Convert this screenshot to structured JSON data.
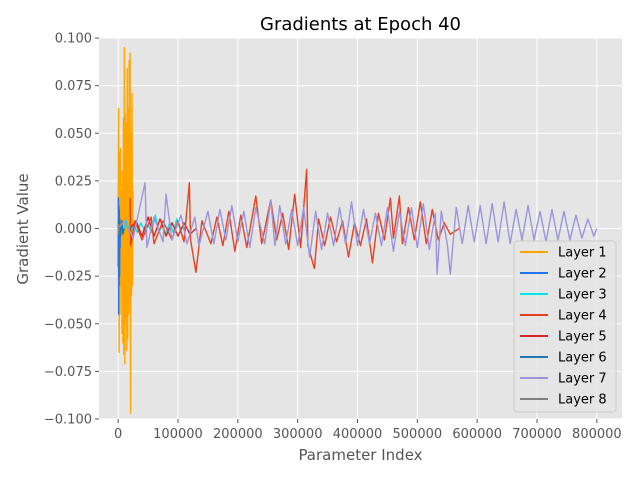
{
  "chart_data": {
    "type": "line",
    "title": "Gradients at Epoch 40",
    "xlabel": "Parameter Index",
    "ylabel": "Gradient Value",
    "xlim": [
      -32000,
      842000
    ],
    "ylim": [
      -0.1,
      0.1
    ],
    "xticks": [
      0,
      100000,
      200000,
      300000,
      400000,
      500000,
      600000,
      700000,
      800000
    ],
    "xtick_labels": [
      "0",
      "100000",
      "200000",
      "300000",
      "400000",
      "500000",
      "600000",
      "700000",
      "800000"
    ],
    "yticks": [
      -0.1,
      -0.075,
      -0.05,
      -0.025,
      0.0,
      0.025,
      0.05,
      0.075,
      0.1
    ],
    "ytick_labels": [
      "−0.100",
      "−0.075",
      "−0.050",
      "−0.025",
      "0.000",
      "0.025",
      "0.050",
      "0.075",
      "0.100"
    ],
    "grid": true,
    "legend_position": "lower-right",
    "series": [
      {
        "name": "Layer 1",
        "color": "#ffa500",
        "x_range": [
          0,
          25000
        ],
        "points": [
          [
            0,
            0.01
          ],
          [
            800,
            0.063
          ],
          [
            1600,
            -0.065
          ],
          [
            2400,
            0.04
          ],
          [
            3200,
            -0.045
          ],
          [
            4000,
            0.042
          ],
          [
            4800,
            -0.03
          ],
          [
            5600,
            0.02
          ],
          [
            6400,
            -0.055
          ],
          [
            7200,
            0.03
          ],
          [
            8000,
            -0.06
          ],
          [
            8800,
            0.058
          ],
          [
            9600,
            -0.066
          ],
          [
            10400,
            0.095
          ],
          [
            11200,
            -0.071
          ],
          [
            12000,
            0.06
          ],
          [
            12800,
            -0.05
          ],
          [
            13600,
            0.055
          ],
          [
            14400,
            -0.064
          ],
          [
            15200,
            0.084
          ],
          [
            16000,
            -0.058
          ],
          [
            16800,
            0.063
          ],
          [
            17600,
            -0.045
          ],
          [
            18400,
            0.088
          ],
          [
            19200,
            -0.04
          ],
          [
            20000,
            0.092
          ],
          [
            20800,
            -0.097
          ],
          [
            21600,
            0.05
          ],
          [
            22400,
            -0.035
          ],
          [
            23200,
            0.071
          ],
          [
            24000,
            -0.03
          ],
          [
            24800,
            0.02
          ]
        ]
      },
      {
        "name": "Layer 2",
        "color": "#1f77f0",
        "x_range": [
          0,
          4000
        ],
        "points": [
          [
            0,
            -0.02
          ],
          [
            400,
            0.016
          ],
          [
            800,
            -0.045
          ],
          [
            1200,
            0.012
          ],
          [
            1600,
            -0.03
          ],
          [
            2000,
            0.01
          ],
          [
            2400,
            -0.025
          ],
          [
            2800,
            0.005
          ],
          [
            3200,
            -0.01
          ],
          [
            3600,
            0.002
          ],
          [
            4000,
            0.0
          ]
        ]
      },
      {
        "name": "Layer 3",
        "color": "#00e5e5",
        "x_range": [
          0,
          110000
        ],
        "points": [
          [
            2000,
            0.003
          ],
          [
            8000,
            -0.002
          ],
          [
            14000,
            0.004
          ],
          [
            20000,
            -0.003
          ],
          [
            26000,
            0.002
          ],
          [
            32000,
            -0.002
          ],
          [
            38000,
            0.003
          ],
          [
            44000,
            -0.001
          ],
          [
            50000,
            0.002
          ],
          [
            56000,
            -0.002
          ],
          [
            62000,
            0.007
          ],
          [
            68000,
            -0.002
          ],
          [
            74000,
            0.002
          ],
          [
            80000,
            -0.003
          ],
          [
            86000,
            0.003
          ],
          [
            92000,
            -0.002
          ],
          [
            98000,
            0.005
          ],
          [
            104000,
            -0.001
          ],
          [
            110000,
            0.001
          ]
        ]
      },
      {
        "name": "Layer 4",
        "color": "#e8401c",
        "x_range": [
          20000,
          570000
        ],
        "points": [
          [
            20000,
            0.016
          ],
          [
            21000,
            -0.009
          ],
          [
            28000,
            0.004
          ],
          [
            40000,
            -0.006
          ],
          [
            55000,
            0.006
          ],
          [
            60000,
            -0.008
          ],
          [
            75000,
            0.004
          ],
          [
            90000,
            -0.006
          ],
          [
            100000,
            0.004
          ],
          [
            110000,
            -0.007
          ],
          [
            119000,
            0.024
          ],
          [
            121000,
            -0.006
          ],
          [
            130000,
            -0.023
          ],
          [
            140000,
            0.004
          ],
          [
            155000,
            -0.008
          ],
          [
            165000,
            0.006
          ],
          [
            175000,
            -0.009
          ],
          [
            185000,
            0.009
          ],
          [
            195000,
            -0.012
          ],
          [
            205000,
            0.007
          ],
          [
            215000,
            -0.01
          ],
          [
            230000,
            0.017
          ],
          [
            240000,
            -0.008
          ],
          [
            255000,
            0.015
          ],
          [
            265000,
            -0.006
          ],
          [
            275000,
            0.008
          ],
          [
            285000,
            -0.011
          ],
          [
            295000,
            0.018
          ],
          [
            305000,
            -0.01
          ],
          [
            315000,
            0.031
          ],
          [
            317000,
            -0.009
          ],
          [
            328000,
            -0.021
          ],
          [
            335000,
            0.005
          ],
          [
            345000,
            -0.009
          ],
          [
            355000,
            0.006
          ],
          [
            365000,
            -0.007
          ],
          [
            375000,
            0.004
          ],
          [
            385000,
            -0.015
          ],
          [
            395000,
            0.003
          ],
          [
            405000,
            -0.009
          ],
          [
            415000,
            0.005
          ],
          [
            425000,
            -0.018
          ],
          [
            435000,
            0.008
          ],
          [
            445000,
            -0.006
          ],
          [
            455000,
            0.016
          ],
          [
            460000,
            -0.005
          ],
          [
            470000,
            0.017
          ],
          [
            475000,
            -0.008
          ],
          [
            485000,
            0.011
          ],
          [
            495000,
            -0.006
          ],
          [
            505000,
            0.014
          ],
          [
            515000,
            -0.008
          ],
          [
            525000,
            0.01
          ],
          [
            535000,
            -0.006
          ],
          [
            545000,
            0.003
          ],
          [
            555000,
            -0.003
          ],
          [
            570000,
            0.0
          ]
        ]
      },
      {
        "name": "Layer 5",
        "color": "#d62728",
        "x_range": [
          20000,
          130000
        ],
        "points": [
          [
            20000,
            0.0
          ],
          [
            30000,
            0.004
          ],
          [
            40000,
            -0.004
          ],
          [
            50000,
            0.006
          ],
          [
            60000,
            -0.004
          ],
          [
            70000,
            0.005
          ],
          [
            80000,
            -0.004
          ],
          [
            90000,
            0.003
          ],
          [
            100000,
            -0.004
          ],
          [
            110000,
            0.003
          ],
          [
            120000,
            -0.003
          ],
          [
            130000,
            0.0
          ]
        ]
      },
      {
        "name": "Layer 6",
        "color": "#1f77b4",
        "x_range": [
          0,
          10000
        ],
        "points": [
          [
            0,
            0.0
          ],
          [
            2000,
            0.005
          ],
          [
            4000,
            -0.004
          ],
          [
            6000,
            0.004
          ],
          [
            8000,
            -0.003
          ],
          [
            10000,
            0.0
          ]
        ]
      },
      {
        "name": "Layer 7",
        "color": "#9c95dc",
        "x_range": [
          0,
          800000
        ],
        "points": [
          [
            0,
            0.0
          ],
          [
            10000,
            0.004
          ],
          [
            25000,
            -0.005
          ],
          [
            45000,
            0.024
          ],
          [
            48000,
            -0.01
          ],
          [
            60000,
            0.006
          ],
          [
            75000,
            -0.007
          ],
          [
            80000,
            0.018
          ],
          [
            90000,
            -0.006
          ],
          [
            105000,
            0.007
          ],
          [
            115000,
            -0.008
          ],
          [
            128000,
            0.006
          ],
          [
            135000,
            -0.009
          ],
          [
            150000,
            0.009
          ],
          [
            160000,
            -0.008
          ],
          [
            170000,
            0.01
          ],
          [
            180000,
            -0.006
          ],
          [
            190000,
            0.012
          ],
          [
            200000,
            -0.007
          ],
          [
            210000,
            0.009
          ],
          [
            220000,
            -0.01
          ],
          [
            230000,
            0.011
          ],
          [
            245000,
            -0.008
          ],
          [
            255000,
            0.015
          ],
          [
            262000,
            -0.009
          ],
          [
            270000,
            0.012
          ],
          [
            280000,
            -0.008
          ],
          [
            290000,
            0.01
          ],
          [
            300000,
            -0.009
          ],
          [
            310000,
            0.011
          ],
          [
            320000,
            -0.015
          ],
          [
            330000,
            0.009
          ],
          [
            340000,
            -0.011
          ],
          [
            350000,
            0.008
          ],
          [
            360000,
            -0.009
          ],
          [
            370000,
            0.011
          ],
          [
            380000,
            -0.008
          ],
          [
            390000,
            0.014
          ],
          [
            400000,
            -0.009
          ],
          [
            410000,
            0.01
          ],
          [
            420000,
            -0.008
          ],
          [
            430000,
            0.008
          ],
          [
            440000,
            -0.009
          ],
          [
            450000,
            0.011
          ],
          [
            460000,
            -0.012
          ],
          [
            470000,
            0.009
          ],
          [
            480000,
            -0.009
          ],
          [
            490000,
            0.011
          ],
          [
            500000,
            -0.01
          ],
          [
            510000,
            0.013
          ],
          [
            520000,
            -0.011
          ],
          [
            530000,
            0.008
          ],
          [
            533000,
            -0.024
          ],
          [
            540000,
            0.009
          ],
          [
            550000,
            -0.008
          ],
          [
            555000,
            -0.024
          ],
          [
            565000,
            0.011
          ],
          [
            575000,
            -0.008
          ],
          [
            585000,
            0.012
          ],
          [
            595000,
            -0.007
          ],
          [
            605000,
            0.012
          ],
          [
            615000,
            -0.008
          ],
          [
            625000,
            0.013
          ],
          [
            635000,
            -0.007
          ],
          [
            645000,
            0.014
          ],
          [
            655000,
            -0.008
          ],
          [
            665000,
            0.01
          ],
          [
            675000,
            -0.006
          ],
          [
            685000,
            0.012
          ],
          [
            695000,
            -0.006
          ],
          [
            705000,
            0.009
          ],
          [
            715000,
            -0.007
          ],
          [
            725000,
            0.01
          ],
          [
            735000,
            -0.006
          ],
          [
            745000,
            0.009
          ],
          [
            755000,
            -0.006
          ],
          [
            765000,
            0.007
          ],
          [
            775000,
            -0.005
          ],
          [
            785000,
            0.005
          ],
          [
            795000,
            -0.004
          ],
          [
            800000,
            0.0
          ]
        ]
      },
      {
        "name": "Layer 8",
        "color": "#7f7f7f",
        "x_range": [
          0,
          2000
        ],
        "points": [
          [
            0,
            0.0
          ],
          [
            500,
            -0.003
          ],
          [
            1000,
            0.002
          ],
          [
            1500,
            -0.001
          ],
          [
            2000,
            0.0
          ]
        ]
      }
    ]
  }
}
